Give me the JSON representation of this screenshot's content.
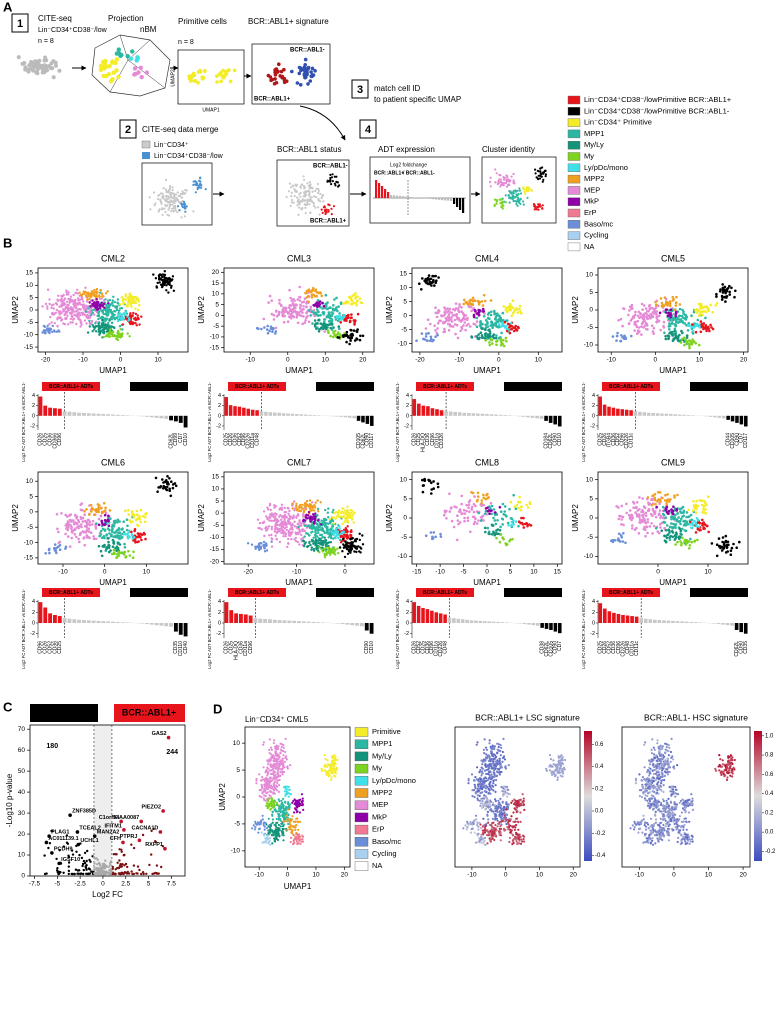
{
  "panel_a": {
    "label": "A",
    "step1": "1",
    "cite_seq": "CITE-seq",
    "population": "Lin⁻CD34⁺CD38⁻/low",
    "n1": "n = 8",
    "projection": "Projection",
    "nbm": "nBM",
    "primitive": "Primitive cells",
    "n2": "n = 8",
    "signature": "BCR::ABL1+ signature",
    "umap1": "UMAP1",
    "umap2": "UMAP2",
    "sig_neg": "BCR::ABL1-",
    "sig_pos": "BCR::ABL1+",
    "step3": "3",
    "match1": "match cell ID",
    "match2": "to patient specific UMAP",
    "step2": "2",
    "merge": "CITE-seq data merge",
    "merge_a": "Lin⁻CD34⁺",
    "merge_b": "Lin⁻CD34⁺CD38⁻/low",
    "status": "BCR::ABL1 status",
    "status_neg": "BCR::ABL1-",
    "status_pos": "BCR::ABL1+",
    "step4": "4",
    "adt": "ADT expression",
    "log2": "Log2 foldchange",
    "ratio_pos": "BCR::ABL1+",
    "ratio_neg": "/ BCR::ABL1-",
    "cluster": "Cluster identity",
    "legend": [
      {
        "label": "Lin⁻CD34⁺CD38⁻/lowPrimitive BCR::ABL1+",
        "color": "#e8141c"
      },
      {
        "label": "Lin⁻CD34⁺CD38⁻/lowPrimitive BCR::ABL1-",
        "color": "#000000"
      },
      {
        "label": "Lin⁻CD34⁺ Primitive",
        "color": "#f4ec26"
      },
      {
        "label": "MPP1",
        "color": "#2cb7a2"
      },
      {
        "label": "My/Ly",
        "color": "#13937a"
      },
      {
        "label": "My",
        "color": "#7ed321"
      },
      {
        "label": "Ly/pDc/mono",
        "color": "#3fe0e8"
      },
      {
        "label": "MPP2",
        "color": "#f0a020"
      },
      {
        "label": "MEP",
        "color": "#e48ad6"
      },
      {
        "label": "MkP",
        "color": "#9000a8"
      },
      {
        "label": "ErP",
        "color": "#f07a92"
      },
      {
        "label": "Baso/mc",
        "color": "#6a8ed8"
      },
      {
        "label": "Cycling",
        "color": "#a8d0f0"
      },
      {
        "label": "NA",
        "color": "#ffffff"
      }
    ]
  },
  "panel_b": {
    "label": "B",
    "x_label": "UMAP1",
    "y_label": "UMAP2",
    "up_badge": "BCR::ABL1+ ADTs",
    "down_badge": "BCR::ABL1- ADTs",
    "bar_y_label": "Log2 FC ADT BCR::ABL1+ vs BCR::ABL1-",
    "bar_ylim": [
      -2.8,
      4.3
    ],
    "bar_yticks": [
      -2,
      0,
      2,
      4
    ],
    "samples": [
      {
        "title": "CML2",
        "xlim": [
          -22,
          18
        ],
        "xticks": [
          -20,
          -10,
          0,
          10
        ],
        "ylim": [
          -17,
          17
        ],
        "yticks": [
          -15,
          -10,
          -5,
          0,
          5,
          10,
          15
        ],
        "up": [
          3.8,
          2.0,
          1.6,
          1.5,
          1.4
        ],
        "up_labels": [
          "CD26",
          "CD25",
          "CD36",
          "CD366",
          "CD96"
        ],
        "mid": [
          0.9,
          0.8,
          0.7,
          0.6,
          0.55,
          0.5,
          0.45,
          0.4,
          0.35,
          0.3,
          0.25,
          0.2,
          0.15,
          0.1,
          0.05,
          -0.05,
          -0.1,
          -0.2,
          -0.3,
          -0.4,
          -0.5,
          -0.6
        ],
        "down": [
          -0.9,
          -1.1,
          -1.4,
          -2.3
        ],
        "down_labels": [
          "CD62L",
          "CD99",
          "CD7",
          "CD10"
        ]
      },
      {
        "title": "CML3",
        "xlim": [
          -17,
          23
        ],
        "xticks": [
          -10,
          0,
          10,
          20
        ],
        "ylim": [
          -17,
          22
        ],
        "yticks": [
          -15,
          -10,
          -5,
          0,
          5,
          10,
          15,
          20
        ],
        "up": [
          3.7,
          2.1,
          1.9,
          1.8,
          1.6,
          1.4,
          1.2,
          1.1
        ],
        "up_labels": [
          "CD25",
          "CD26",
          "CD36",
          "CD52",
          "CD96",
          "CD226",
          "CD11a",
          "CD48"
        ],
        "mid": [
          0.9,
          0.8,
          0.7,
          0.65,
          0.6,
          0.5,
          0.45,
          0.4,
          0.35,
          0.3,
          0.25,
          0.2,
          0.15,
          0.1,
          0.05,
          -0.05,
          -0.1,
          -0.15,
          -0.2,
          -0.3,
          -0.4,
          -0.5
        ],
        "down": [
          -1.0,
          -1.3,
          -1.6,
          -2.0
        ],
        "down_labels": [
          "CD105",
          "CD62L",
          "CD90",
          "CD117"
        ]
      },
      {
        "title": "CML4",
        "xlim": [
          -22,
          16
        ],
        "xticks": [
          -20,
          -10,
          0,
          10
        ],
        "ylim": [
          -13,
          17
        ],
        "yticks": [
          -10,
          -5,
          0,
          5,
          10,
          15
        ],
        "up": [
          3.3,
          2.4,
          2.0,
          1.9,
          1.5,
          1.3,
          1.1
        ],
        "up_labels": [
          "CD26",
          "CD25",
          "HLA-DQ",
          "CD36",
          "CD96",
          "CD11a",
          "CD326"
        ],
        "mid": [
          0.9,
          0.85,
          0.75,
          0.7,
          0.6,
          0.55,
          0.5,
          0.45,
          0.4,
          0.35,
          0.3,
          0.25,
          0.2,
          0.15,
          0.1,
          0.05,
          -0.1,
          -0.2,
          -0.3,
          -0.4,
          -0.5,
          -0.6
        ],
        "down": [
          -1.0,
          -1.4,
          -1.7,
          -2.1
        ],
        "down_labels": [
          "CD184",
          "CD62L",
          "CD90",
          "CD10"
        ]
      },
      {
        "title": "CML5",
        "xlim": [
          -13,
          21
        ],
        "xticks": [
          -10,
          0,
          10,
          20
        ],
        "ylim": [
          -12,
          12
        ],
        "yticks": [
          -10,
          -5,
          0,
          5,
          10
        ],
        "up": [
          3.8,
          2.2,
          1.8,
          1.6,
          1.4,
          1.3,
          1.2,
          1.1
        ],
        "up_labels": [
          "CD25",
          "CD26",
          "ITGB4",
          "CD36",
          "CD52",
          "CD96",
          "CD226",
          "CD11c"
        ],
        "mid": [
          0.9,
          0.8,
          0.7,
          0.6,
          0.55,
          0.5,
          0.45,
          0.4,
          0.35,
          0.3,
          0.25,
          0.2,
          0.15,
          0.1,
          0.05,
          -0.05,
          -0.1,
          -0.2,
          -0.3,
          -0.4,
          -0.5
        ],
        "down": [
          -0.8,
          -1.1,
          -1.4,
          -1.7,
          -2.1
        ],
        "down_labels": [
          "CD44",
          "CD105",
          "CD90",
          "CD7",
          "CD117"
        ]
      },
      {
        "title": "CML6",
        "xlim": [
          -16,
          20
        ],
        "xticks": [
          -10,
          0,
          10
        ],
        "ylim": [
          -17,
          13
        ],
        "yticks": [
          -15,
          -10,
          -5,
          0,
          5,
          10
        ],
        "up": [
          3.9,
          2.9,
          1.8,
          1.5,
          1.3
        ],
        "up_labels": [
          "CD96",
          "CD26",
          "CD52",
          "CD36",
          "CD25"
        ],
        "mid": [
          0.9,
          0.8,
          0.7,
          0.6,
          0.55,
          0.5,
          0.45,
          0.4,
          0.35,
          0.3,
          0.25,
          0.2,
          0.15,
          0.1,
          0.05,
          -0.05,
          -0.1,
          -0.2,
          -0.3,
          -0.4,
          -0.5,
          -0.6,
          -0.7
        ],
        "down": [
          -1.6,
          -2.2,
          -2.5
        ],
        "down_labels": [
          "CD35",
          "CD110",
          "CD40"
        ]
      },
      {
        "title": "CML7",
        "xlim": [
          -25,
          6
        ],
        "xticks": [
          -20,
          -10,
          0
        ],
        "ylim": [
          -21,
          17
        ],
        "yticks": [
          -20,
          -15,
          -10,
          -5,
          0,
          5,
          10,
          15
        ],
        "up": [
          3.9,
          2.4,
          1.8,
          1.7,
          1.6,
          1.4
        ],
        "up_labels": [
          "CD26",
          "CD25",
          "HLA-DQ",
          "CD36",
          "CD11a",
          "CD96"
        ],
        "mid": [
          0.9,
          0.8,
          0.75,
          0.7,
          0.6,
          0.55,
          0.5,
          0.45,
          0.4,
          0.35,
          0.3,
          0.25,
          0.2,
          0.15,
          0.1,
          0.05,
          -0.05,
          -0.1,
          -0.2,
          -0.3,
          -0.4,
          -0.5,
          -0.6
        ],
        "down": [
          -1.4,
          -2.0
        ],
        "down_labels": [
          "CD90",
          "CD10"
        ]
      },
      {
        "title": "CML8",
        "xlim": [
          -16,
          16
        ],
        "xticks": [
          -15,
          -10,
          -5,
          0,
          5,
          10,
          15
        ],
        "ylim": [
          -12,
          12
        ],
        "yticks": [
          -10,
          -5,
          0,
          5,
          10
        ],
        "up": [
          3.9,
          3.2,
          2.8,
          2.6,
          2.3,
          2.0,
          1.8,
          1.6
        ],
        "up_labels": [
          "CD26",
          "CD52",
          "CD25",
          "CD36",
          "CD96",
          "CD11a",
          "CD226",
          "CD48"
        ],
        "mid": [
          1.0,
          0.9,
          0.8,
          0.7,
          0.6,
          0.5,
          0.45,
          0.4,
          0.35,
          0.3,
          0.25,
          0.2,
          0.15,
          0.1,
          0.05,
          -0.05,
          -0.1,
          -0.2,
          -0.3,
          -0.4,
          -0.5
        ],
        "down": [
          -0.9,
          -1.1,
          -1.3,
          -1.6,
          -1.9
        ],
        "down_labels": [
          "CD38",
          "CD62L",
          "CD105",
          "CD90",
          "CD7"
        ]
      },
      {
        "title": "CML9",
        "xlim": [
          -12,
          18
        ],
        "xticks": [
          0,
          10
        ],
        "ylim": [
          -12,
          12
        ],
        "yticks": [
          -10,
          -5,
          0,
          5,
          10
        ],
        "up": [
          3.7,
          2.7,
          2.2,
          1.9,
          1.7,
          1.5,
          1.4,
          1.3,
          1.2
        ],
        "up_labels": [
          "CD25",
          "CD26",
          "CD52",
          "CD36",
          "CD96",
          "CD226",
          "CD48",
          "CD11a",
          "CD11c"
        ],
        "mid": [
          0.9,
          0.8,
          0.7,
          0.6,
          0.55,
          0.5,
          0.45,
          0.4,
          0.35,
          0.3,
          0.25,
          0.2,
          0.15,
          0.1,
          0.05,
          -0.05,
          -0.1,
          -0.2,
          -0.3,
          -0.4,
          -0.5
        ],
        "down": [
          -1.3,
          -1.7,
          -2.0
        ],
        "down_labels": [
          "CD62L",
          "CD90",
          "CD35"
        ]
      }
    ]
  },
  "panel_c": {
    "label": "C",
    "neg": "BCR::ABL1-",
    "pos": "BCR::ABL1+",
    "neg_count": "180",
    "pos_count": "244",
    "x_label": "Log2 FC",
    "y_label": "-Log10 p-value",
    "xlim": [
      -8,
      9
    ],
    "xticks": [
      -7.5,
      -5,
      -2.5,
      0,
      2.5,
      5,
      7.5
    ],
    "ylim": [
      0,
      72
    ],
    "yticks": [
      0,
      10,
      20,
      30,
      40,
      50,
      60,
      70
    ],
    "genes": [
      {
        "name": "GAS2",
        "fc": 7.2,
        "p": 66,
        "up": true
      },
      {
        "name": "PIEZO2",
        "fc": 6.6,
        "p": 31,
        "up": true
      },
      {
        "name": "KIAA0087",
        "fc": 4.2,
        "p": 26,
        "up": true
      },
      {
        "name": "C1orf54",
        "fc": 2.0,
        "p": 26,
        "up": true
      },
      {
        "name": "IFITM1",
        "fc": 2.3,
        "p": 22,
        "up": true
      },
      {
        "name": "CACNA1D",
        "fc": 6.3,
        "p": 21,
        "up": true
      },
      {
        "name": "PTPRJ",
        "fc": 4.0,
        "p": 17,
        "up": true
      },
      {
        "name": "CFH",
        "fc": 2.2,
        "p": 16,
        "up": true
      },
      {
        "name": "RXFP1",
        "fc": 6.8,
        "p": 13,
        "up": true
      },
      {
        "name": "ZNF385D",
        "fc": -3.6,
        "p": 29,
        "up": false
      },
      {
        "name": "TCEAL2",
        "fc": -2.8,
        "p": 21,
        "up": false
      },
      {
        "name": "MAN2A2",
        "fc": -0.9,
        "p": 19,
        "up": false
      },
      {
        "name": "PLAG1",
        "fc": -5.9,
        "p": 19,
        "up": false
      },
      {
        "name": "AC011139.1",
        "fc": -6.2,
        "p": 16,
        "up": false
      },
      {
        "name": "UCHL1",
        "fc": -2.7,
        "p": 15,
        "up": false
      },
      {
        "name": "PCDH9",
        "fc": -5.6,
        "p": 11,
        "up": false
      },
      {
        "name": "IGSF10",
        "fc": -4.8,
        "p": 6,
        "up": false
      }
    ]
  },
  "panel_d": {
    "label": "D",
    "umap_title": "Lin⁻CD34⁺ CML5",
    "x_label": "UMAP1",
    "y_label": "UMAP2",
    "xlim": [
      -15,
      22
    ],
    "xticks": [
      -10,
      0,
      10,
      20
    ],
    "ylim": [
      -13,
      13
    ],
    "yticks": [
      -10,
      -5,
      0,
      5,
      10
    ],
    "legend": [
      {
        "label": "Primitive",
        "color": "#f4ec26"
      },
      {
        "label": "MPP1",
        "color": "#2cb7a2"
      },
      {
        "label": "My/Ly",
        "color": "#13937a"
      },
      {
        "label": "My",
        "color": "#7ed321"
      },
      {
        "label": "Ly/pDc/mono",
        "color": "#3fe0e8"
      },
      {
        "label": "MPP2",
        "color": "#f0a020"
      },
      {
        "label": "MEP",
        "color": "#e48ad6"
      },
      {
        "label": "MkP",
        "color": "#9000a8"
      },
      {
        "label": "ErP",
        "color": "#f07a92"
      },
      {
        "label": "Baso/mc",
        "color": "#6a8ed8"
      },
      {
        "label": "Cycling",
        "color": "#a8d0f0"
      },
      {
        "label": "NA",
        "color": "#ffffff"
      }
    ],
    "lsc": {
      "title": "BCR::ABL1+ LSC signature",
      "clim": [
        -0.45,
        0.72
      ],
      "cticks": [
        -0.4,
        -0.2,
        {
          "value": 0,
          "label": "0.0"
        },
        0.2,
        0.4,
        0.6
      ]
    },
    "hsc": {
      "title": "BCR::ABL1- HSC signature",
      "clim": [
        -0.3,
        1.05
      ],
      "cticks": [
        -0.2,
        {
          "value": 0,
          "label": "0.0"
        },
        0.2,
        0.4,
        0.6,
        0.8,
        {
          "value": 1,
          "label": "1.0"
        }
      ]
    }
  }
}
